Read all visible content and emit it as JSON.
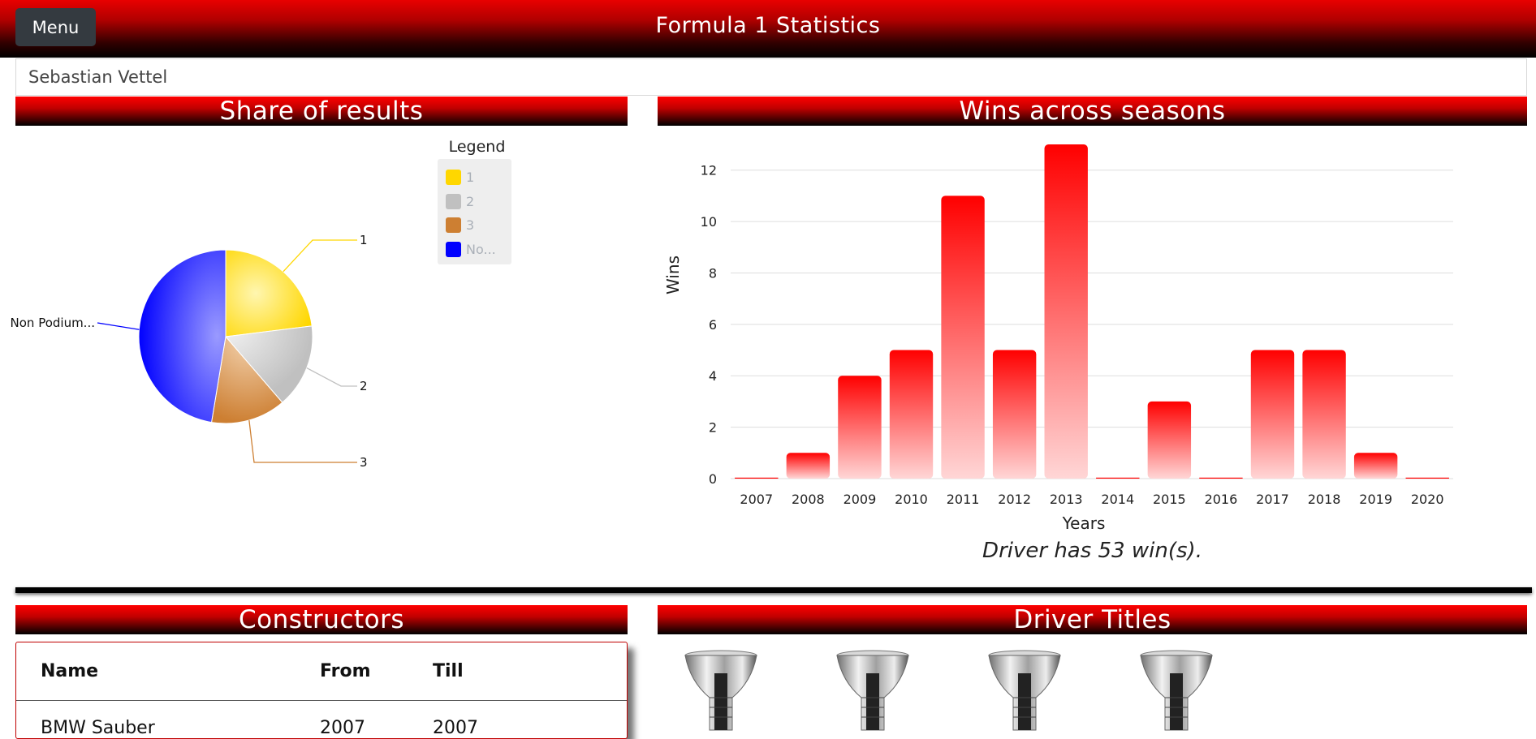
{
  "header": {
    "menu_label": "Menu",
    "title": "Formula 1 Statistics"
  },
  "search": {
    "value": "Sebastian Vettel"
  },
  "sections": {
    "share_title": "Share of results",
    "wins_title": "Wins across seasons",
    "constructors_title": "Constructors",
    "titles_title": "Driver Titles"
  },
  "legend": {
    "title": "Legend",
    "items": [
      {
        "label": "1",
        "color": "#ffd700"
      },
      {
        "label": "2",
        "color": "#c0c0c0"
      },
      {
        "label": "3",
        "color": "#cd7f32"
      },
      {
        "label": "No...",
        "color": "#0000ff"
      }
    ]
  },
  "wins_note": "Driver has 53 win(s).",
  "constructors_table": {
    "headers": [
      "Name",
      "From",
      "Till"
    ],
    "rows": [
      [
        "BMW Sauber",
        "2007",
        "2007"
      ]
    ]
  },
  "driver_titles_count": 4,
  "chart_data": [
    {
      "type": "pie",
      "slices": [
        {
          "label": "1",
          "value": 53,
          "color": "#ffd700"
        },
        {
          "label": "2",
          "value": 36,
          "color": "#c0c0c0"
        },
        {
          "label": "3",
          "value": 32,
          "color": "#cd7f32"
        },
        {
          "label": "Non Podium...",
          "value": 109,
          "color": "#0000ff"
        }
      ]
    },
    {
      "type": "bar",
      "categories": [
        "2007",
        "2008",
        "2009",
        "2010",
        "2011",
        "2012",
        "2013",
        "2014",
        "2015",
        "2016",
        "2017",
        "2018",
        "2019",
        "2020"
      ],
      "values": [
        0,
        1,
        4,
        5,
        11,
        5,
        13,
        0,
        3,
        0,
        5,
        5,
        1,
        0
      ],
      "xlabel": "Years",
      "ylabel": "Wins",
      "ylim": [
        0,
        13
      ],
      "yticks": [
        0,
        2,
        4,
        6,
        8,
        10,
        12
      ],
      "grid": true,
      "color": "#ff0000"
    }
  ]
}
